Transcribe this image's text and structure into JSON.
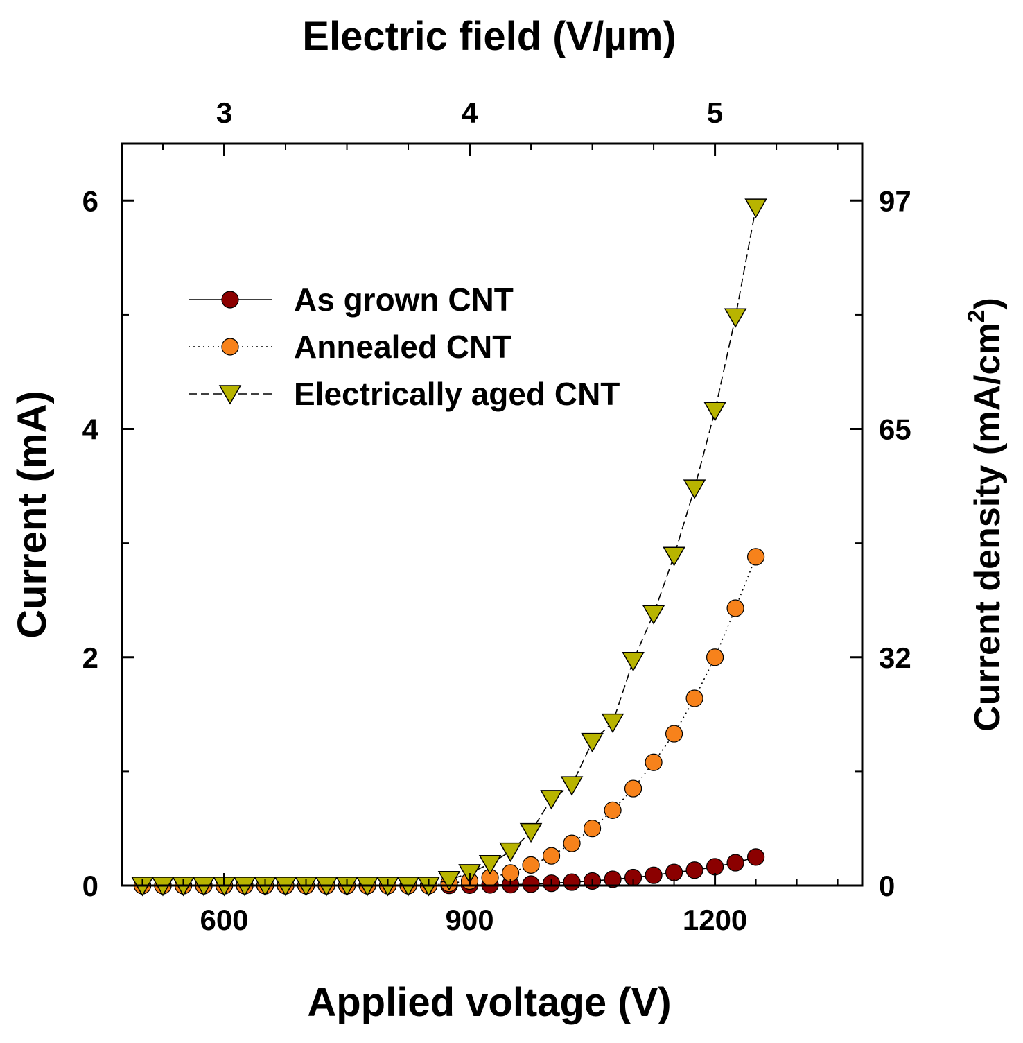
{
  "chart_data": {
    "type": "scatter",
    "title": "",
    "top_xlabel": "Electric field (V/µm)",
    "xlabel": "Applied voltage (V)",
    "ylabel": "Current (mA)",
    "ylabel_right_main": "Current density (mA/cm",
    "ylabel_right_sup": "2",
    "ylabel_right_close": ")",
    "xlim": [
      475,
      1380
    ],
    "ylim": [
      0,
      6.5
    ],
    "x_ticks": [
      600,
      900,
      1200
    ],
    "x_tick_labels": [
      "600",
      "900",
      "1200"
    ],
    "x_minor_ticks": [
      500,
      550,
      650,
      700,
      750,
      800,
      850,
      950,
      1000,
      1050,
      1100,
      1150,
      1250,
      1300,
      1350
    ],
    "y_ticks": [
      0,
      2,
      4,
      6
    ],
    "y_tick_labels": [
      "0",
      "2",
      "4",
      "6"
    ],
    "y_minor_ticks": [
      1,
      3,
      5
    ],
    "top_axis": {
      "ticks": [
        {
          "value": 3,
          "x": 600
        },
        {
          "value": 4,
          "x": 900
        },
        {
          "value": 5,
          "x": 1200
        }
      ],
      "tick_labels": [
        "3",
        "4",
        "5"
      ],
      "minor_ticks": [
        525,
        675,
        750,
        825,
        975,
        1050,
        1125,
        1275,
        1350
      ]
    },
    "right_axis": {
      "ticks": [
        {
          "value": 0,
          "y": 0
        },
        {
          "value": 32,
          "y": 2
        },
        {
          "value": 65,
          "y": 4
        },
        {
          "value": 97,
          "y": 6
        }
      ],
      "tick_labels": [
        "0",
        "32",
        "65",
        "97"
      ]
    },
    "legend": {
      "position": "top-left",
      "entries": [
        "As grown CNT",
        "Annealed CNT",
        "Electrically aged CNT"
      ]
    },
    "grid": false,
    "series": [
      {
        "name": "As grown CNT",
        "marker": "circle",
        "line": "solid",
        "color": "#8b0000",
        "x": [
          500,
          525,
          550,
          575,
          600,
          625,
          650,
          675,
          700,
          725,
          750,
          775,
          800,
          825,
          850,
          875,
          900,
          925,
          950,
          975,
          1000,
          1025,
          1050,
          1075,
          1100,
          1125,
          1150,
          1175,
          1200,
          1225,
          1250
        ],
        "y": [
          0,
          0,
          0,
          0,
          0,
          0,
          0,
          0,
          0,
          0,
          0,
          0,
          0,
          0,
          0,
          0.002,
          0.004,
          0.006,
          0.008,
          0.012,
          0.02,
          0.03,
          0.04,
          0.055,
          0.07,
          0.09,
          0.115,
          0.135,
          0.165,
          0.2,
          0.25
        ]
      },
      {
        "name": "Annealed CNT",
        "marker": "circle",
        "line": "dotted",
        "color": "#f7821b",
        "x": [
          500,
          525,
          550,
          575,
          600,
          625,
          650,
          675,
          700,
          725,
          750,
          775,
          800,
          825,
          850,
          875,
          900,
          925,
          950,
          975,
          1000,
          1025,
          1050,
          1075,
          1100,
          1125,
          1150,
          1175,
          1200,
          1225,
          1250
        ],
        "y": [
          0,
          0,
          0,
          0,
          0,
          0,
          0,
          0,
          0,
          0,
          0,
          0,
          0,
          0,
          0,
          0.02,
          0.04,
          0.07,
          0.11,
          0.18,
          0.26,
          0.37,
          0.5,
          0.66,
          0.85,
          1.08,
          1.33,
          1.64,
          2.0,
          2.43,
          2.88
        ]
      },
      {
        "name": "Electrically aged CNT",
        "marker": "triangle-down",
        "line": "dashed",
        "color": "#b8b400",
        "x": [
          500,
          525,
          550,
          575,
          600,
          625,
          650,
          675,
          700,
          725,
          750,
          775,
          800,
          825,
          850,
          875,
          900,
          925,
          950,
          975,
          1000,
          1025,
          1050,
          1075,
          1100,
          1125,
          1150,
          1175,
          1200,
          1225,
          1250
        ],
        "y": [
          0,
          0,
          0,
          0,
          0,
          0,
          0,
          0,
          0,
          0,
          0,
          0,
          0,
          0,
          0,
          0.05,
          0.11,
          0.19,
          0.3,
          0.47,
          0.76,
          0.88,
          1.26,
          1.43,
          1.97,
          2.38,
          2.89,
          3.48,
          4.16,
          4.98,
          5.94
        ]
      }
    ]
  }
}
